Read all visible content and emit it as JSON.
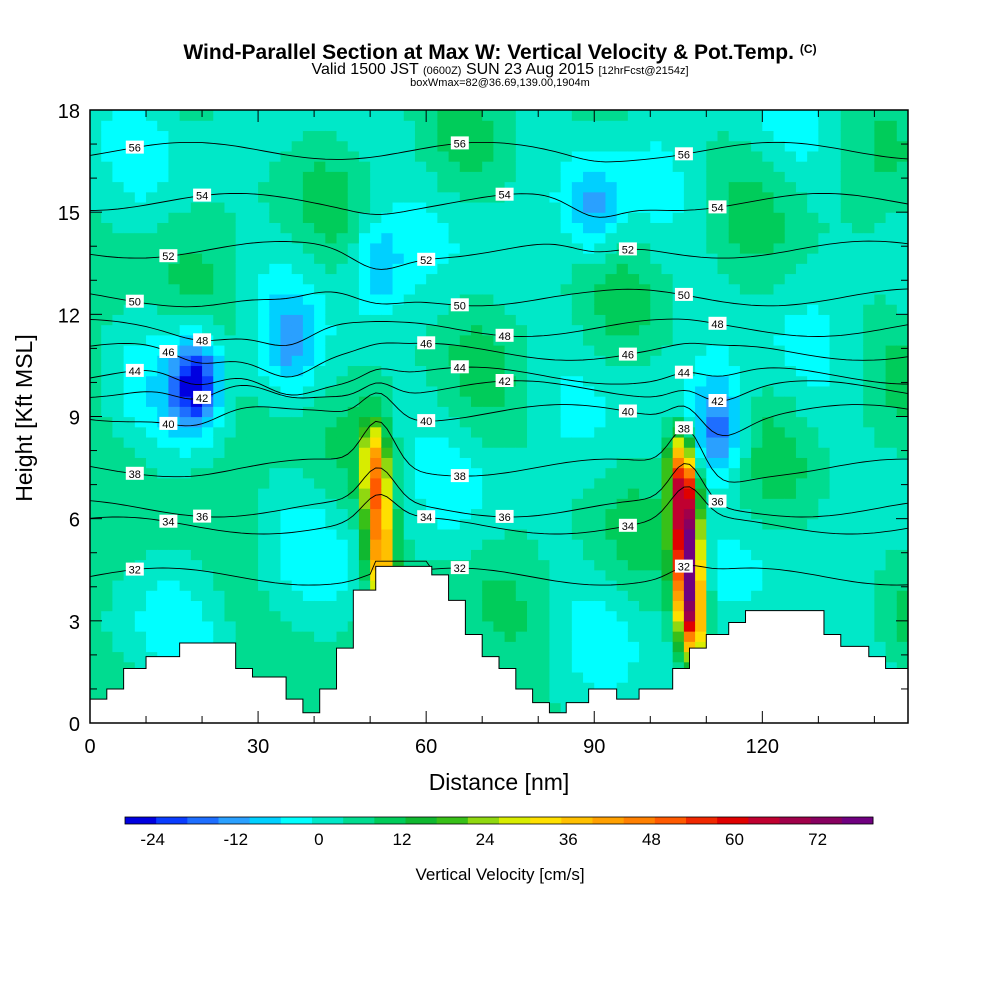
{
  "title": "Wind-Parallel Section at Max W: Vertical Velocity & Pot.Temp.",
  "title_mark": "(C)",
  "subtitle": {
    "a": "Valid 1500 JST",
    "b": "(0600Z)",
    "c": "SUN 23 Aug 2015",
    "d": "[12hrFcst@2154z]"
  },
  "subtitle2": "boxWmax=82@36.69,139.00,1904m",
  "chart_data": {
    "type": "heatmap",
    "xlabel": "Distance [nm]",
    "ylabel": "Height [Kft MSL]",
    "xlim": [
      0,
      146
    ],
    "ylim": [
      0,
      18
    ],
    "xticks": [
      0,
      30,
      60,
      90,
      120
    ],
    "yticks": [
      0,
      3,
      6,
      9,
      12,
      15,
      18
    ],
    "colorbar": {
      "label": "Vertical Velocity [cm/s]",
      "min": -28,
      "max": 80,
      "ticks": [
        -24,
        -12,
        0,
        12,
        24,
        36,
        48,
        60,
        72
      ],
      "colors": [
        "#0000e0",
        "#0a3cff",
        "#1e6eff",
        "#2aa0ff",
        "#00d0ff",
        "#00ffff",
        "#00e8c8",
        "#00dc90",
        "#00cc5a",
        "#10b830",
        "#38c018",
        "#90d810",
        "#d8ec00",
        "#ffe000",
        "#ffc000",
        "#ffa000",
        "#ff8000",
        "#ff5a00",
        "#f02800",
        "#e00000",
        "#c00030",
        "#a0004a",
        "#880060",
        "#700080"
      ]
    },
    "terrain": [
      [
        0,
        0.7
      ],
      [
        3,
        0.7
      ],
      [
        3,
        1.0
      ],
      [
        6,
        1.0
      ],
      [
        6,
        1.6
      ],
      [
        10,
        1.6
      ],
      [
        10,
        1.95
      ],
      [
        16,
        1.95
      ],
      [
        16,
        2.35
      ],
      [
        26,
        2.35
      ],
      [
        26,
        1.6
      ],
      [
        29,
        1.6
      ],
      [
        29,
        1.35
      ],
      [
        35,
        1.35
      ],
      [
        35,
        0.7
      ],
      [
        38,
        0.7
      ],
      [
        38,
        0.3
      ],
      [
        41,
        0.3
      ],
      [
        41,
        1.0
      ],
      [
        44,
        1.0
      ],
      [
        44,
        2.2
      ],
      [
        47,
        2.2
      ],
      [
        47,
        3.9
      ],
      [
        51,
        3.9
      ],
      [
        51,
        4.6
      ],
      [
        57,
        4.6
      ],
      [
        57,
        4.6
      ],
      [
        61,
        4.6
      ],
      [
        61,
        4.35
      ],
      [
        64,
        4.35
      ],
      [
        64,
        3.6
      ],
      [
        67,
        3.6
      ],
      [
        67,
        2.6
      ],
      [
        70,
        2.6
      ],
      [
        70,
        1.95
      ],
      [
        73,
        1.95
      ],
      [
        73,
        1.6
      ],
      [
        76,
        1.6
      ],
      [
        76,
        1.0
      ],
      [
        79,
        1.0
      ],
      [
        79,
        0.6
      ],
      [
        82,
        0.6
      ],
      [
        82,
        0.3
      ],
      [
        85,
        0.3
      ],
      [
        85,
        0.6
      ],
      [
        89,
        0.6
      ],
      [
        89,
        1.0
      ],
      [
        94,
        1.0
      ],
      [
        94,
        0.7
      ],
      [
        98,
        0.7
      ],
      [
        98,
        1.0
      ],
      [
        104,
        1.0
      ],
      [
        104,
        1.6
      ],
      [
        107,
        1.6
      ],
      [
        107,
        2.2
      ],
      [
        110,
        2.2
      ],
      [
        110,
        2.6
      ],
      [
        114,
        2.6
      ],
      [
        114,
        2.95
      ],
      [
        117,
        2.95
      ],
      [
        117,
        3.3
      ],
      [
        131,
        3.3
      ],
      [
        131,
        2.6
      ],
      [
        134,
        2.6
      ],
      [
        134,
        2.25
      ],
      [
        139,
        2.25
      ],
      [
        139,
        1.95
      ],
      [
        142,
        1.95
      ],
      [
        142,
        1.6
      ],
      [
        146,
        1.6
      ]
    ],
    "updrafts": [
      {
        "x": 51.5,
        "bottom_kft": 3.0,
        "top_kft": 9.0,
        "max_w": 48
      },
      {
        "x": 106.5,
        "bottom_kft": 1.7,
        "top_kft": 8.6,
        "max_w": 82
      }
    ],
    "downdrafts": [
      {
        "x": 19,
        "y_kft": 10.0,
        "min_w": -24
      },
      {
        "x": 35.5,
        "y_kft": 11.0,
        "min_w": -6
      },
      {
        "x": 51,
        "y_kft": 13.5,
        "min_w": -8
      },
      {
        "x": 90,
        "y_kft": 15.0,
        "min_w": -10
      },
      {
        "x": 112.5,
        "y_kft": 8.7,
        "min_w": -16
      }
    ],
    "isentropes": [
      {
        "label": "32",
        "y_kft": 4.3
      },
      {
        "label": "34",
        "y_kft": 5.8
      },
      {
        "label": "36",
        "y_kft": 6.3
      },
      {
        "label": "38",
        "y_kft": 7.5
      },
      {
        "label": "40",
        "y_kft": 9.1
      },
      {
        "label": "42",
        "y_kft": 9.8
      },
      {
        "label": "44",
        "y_kft": 10.2
      },
      {
        "label": "46",
        "y_kft": 10.9
      },
      {
        "label": "48",
        "y_kft": 11.6
      },
      {
        "label": "50",
        "y_kft": 12.5
      },
      {
        "label": "52",
        "y_kft": 13.9
      },
      {
        "label": "54",
        "y_kft": 15.3
      },
      {
        "label": "56",
        "y_kft": 16.8
      }
    ]
  }
}
